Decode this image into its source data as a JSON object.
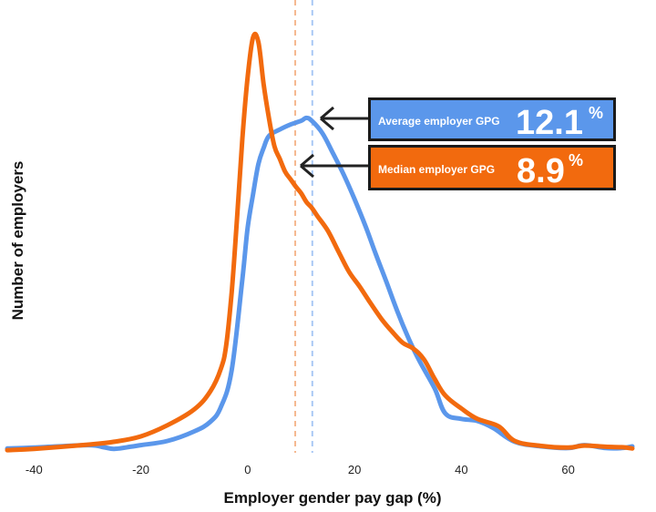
{
  "chart_data": {
    "type": "line",
    "title": "",
    "xlabel": "Employer gender pay gap (%)",
    "ylabel": "Number of employers",
    "xlim": [
      -45,
      72
    ],
    "ylim": [
      0,
      100
    ],
    "x_ticks": [
      -40,
      -20,
      0,
      20,
      40,
      60
    ],
    "grid": false,
    "series": [
      {
        "name": "Average employer GPG",
        "color": "#5B97EB",
        "x": [
          -45,
          -40,
          -30,
          -27,
          -25,
          -22,
          -20,
          -15,
          -10,
          -7,
          -5,
          -3,
          -1,
          0,
          1,
          2,
          3,
          4,
          6,
          8,
          10,
          11,
          12,
          14,
          16,
          18,
          20,
          22,
          24,
          26,
          28,
          30,
          32,
          35,
          37,
          40,
          43,
          46,
          50,
          55,
          60,
          63,
          67,
          70,
          72
        ],
        "y": [
          0.6,
          0.8,
          1.4,
          0.9,
          0.5,
          1.0,
          1.4,
          2.4,
          4.7,
          7.0,
          10.6,
          19.4,
          41.2,
          53.6,
          61.6,
          68.9,
          72.8,
          75.7,
          77.2,
          78.4,
          79.3,
          80.0,
          79.3,
          76.3,
          71.4,
          66.3,
          60.5,
          54.2,
          47.2,
          40.5,
          33.6,
          27.4,
          22.0,
          15.0,
          9.0,
          7.7,
          7.2,
          5.5,
          2.2,
          1.1,
          0.7,
          1.4,
          0.7,
          0.7,
          1.1
        ]
      },
      {
        "name": "Median employer GPG",
        "color": "#F26A0E",
        "x": [
          -45,
          -40,
          -30,
          -25,
          -20,
          -15,
          -10,
          -7,
          -5,
          -4,
          -3,
          -2,
          -1,
          0,
          1,
          2,
          3,
          4,
          5,
          6,
          7,
          8,
          9,
          10,
          11,
          12,
          13,
          15,
          17,
          19,
          21,
          23,
          25,
          27,
          29,
          31,
          33,
          35,
          37,
          40,
          43,
          47,
          50,
          55,
          60,
          63,
          67,
          70,
          72
        ],
        "y": [
          0.2,
          0.5,
          1.5,
          2.2,
          3.5,
          6.2,
          10.0,
          14.3,
          19.8,
          25.6,
          38.1,
          55.7,
          75.0,
          89.8,
          99.3,
          98.2,
          88.0,
          79.8,
          73.2,
          70.2,
          67.1,
          65.3,
          63.5,
          61.9,
          59.8,
          58.4,
          56.5,
          52.9,
          47.9,
          43.0,
          39.4,
          35.5,
          31.8,
          28.7,
          26.0,
          24.6,
          22.0,
          17.3,
          13.3,
          10.2,
          7.7,
          5.9,
          2.4,
          1.2,
          0.8,
          1.3,
          1.0,
          0.9,
          0.6
        ]
      }
    ],
    "reference_lines": [
      {
        "series": "Average employer GPG",
        "x": 12.1,
        "color": "#A9C8F5"
      },
      {
        "series": "Median employer GPG",
        "x": 8.9,
        "color": "#F5B890"
      }
    ],
    "annotations": [
      {
        "label": "Average employer GPG",
        "value": "12.1",
        "unit": "%",
        "color": "#5B97EB"
      },
      {
        "label": "Median employer GPG",
        "value": "8.9",
        "unit": "%",
        "color": "#F26A0E"
      }
    ]
  }
}
